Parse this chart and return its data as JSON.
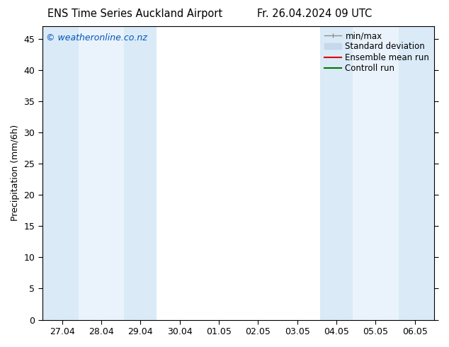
{
  "title_left": "ENS Time Series Auckland Airport",
  "title_right": "Fr. 26.04.2024 09 UTC",
  "ylabel": "Precipitation (mm/6h)",
  "watermark": "© weatheronline.co.nz",
  "x_tick_labels": [
    "27.04",
    "28.04",
    "29.04",
    "30.04",
    "01.05",
    "02.05",
    "03.05",
    "04.05",
    "05.05",
    "06.05"
  ],
  "x_tick_positions": [
    0,
    1,
    2,
    3,
    4,
    5,
    6,
    7,
    8,
    9
  ],
  "ylim": [
    0,
    47
  ],
  "yticks": [
    0,
    5,
    10,
    15,
    20,
    25,
    30,
    35,
    40,
    45
  ],
  "xlim": [
    -0.5,
    9.5
  ],
  "bg_color": "#ffffff",
  "plot_bg_color": "#ffffff",
  "shaded_bands_dark": [
    {
      "x_start": -0.5,
      "x_end": 0.42,
      "color": "#daeaf7"
    },
    {
      "x_start": 1.58,
      "x_end": 2.42,
      "color": "#daeaf7"
    },
    {
      "x_start": 6.58,
      "x_end": 7.42,
      "color": "#daeaf7"
    },
    {
      "x_start": 8.58,
      "x_end": 9.5,
      "color": "#daeaf7"
    }
  ],
  "shaded_bands_light": [
    {
      "x_start": 0.42,
      "x_end": 1.58,
      "color": "#eaf3fb"
    },
    {
      "x_start": 7.42,
      "x_end": 8.58,
      "color": "#eaf3fb"
    }
  ],
  "legend_entries": [
    {
      "label": "min/max"
    },
    {
      "label": "Standard deviation"
    },
    {
      "label": "Ensemble mean run"
    },
    {
      "label": "Controll run"
    }
  ],
  "font_size": 9,
  "title_font_size": 10.5,
  "watermark_color": "#0055bb",
  "minmax_color": "#909090",
  "std_color": "#c5d9ea",
  "ens_color": "#dd0000",
  "ctrl_color": "#007700"
}
